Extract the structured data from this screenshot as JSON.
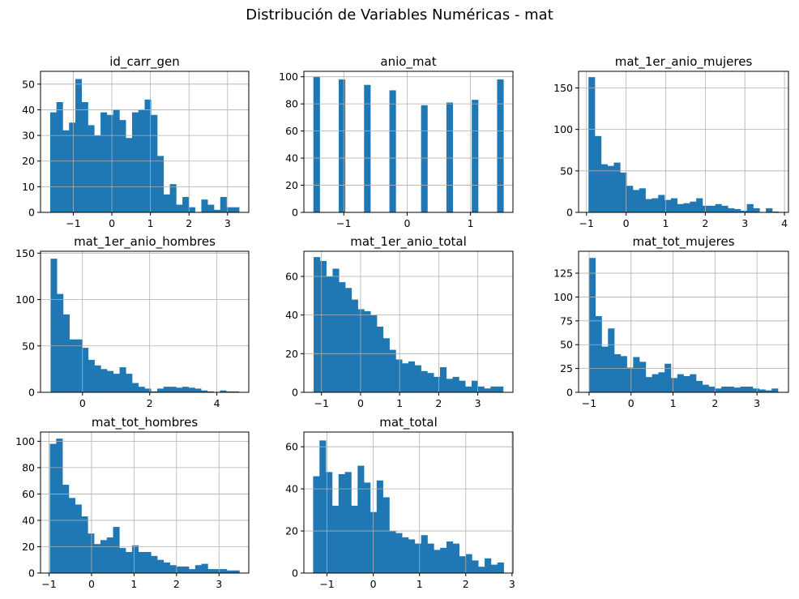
{
  "title": "Distribución de Variables Numéricas - mat",
  "chart_data": [
    {
      "type": "bar",
      "title": "id_carr_gen",
      "bin_edges": [
        -1.6,
        3.3
      ],
      "grid": true,
      "xlim": [
        -1.85,
        3.55
      ],
      "ylim": [
        0,
        55
      ],
      "xticks": [
        -1,
        0,
        1,
        2,
        3
      ],
      "xtick_labels": [
        "−1",
        "0",
        "1",
        "2",
        "3"
      ],
      "yticks": [
        0,
        10,
        20,
        30,
        40,
        50
      ],
      "ytick_labels": [
        "0",
        "10",
        "20",
        "30",
        "40",
        "50"
      ],
      "values": [
        39,
        43,
        32,
        35,
        52,
        43,
        34,
        30,
        39,
        38,
        40,
        36,
        29,
        39,
        40,
        44,
        38,
        22,
        7,
        11,
        3,
        6,
        2,
        0,
        5,
        3,
        1,
        6,
        2,
        2
      ]
    },
    {
      "type": "bar",
      "title": "anio_mat",
      "bin_edges": [
        -1.48,
        1.52
      ],
      "grid": true,
      "xlim": [
        -1.63,
        1.67
      ],
      "ylim": [
        0,
        104
      ],
      "xticks": [
        -1,
        0,
        1
      ],
      "xtick_labels": [
        "−1",
        "0",
        "1"
      ],
      "yticks": [
        0,
        20,
        40,
        60,
        80,
        100
      ],
      "ytick_labels": [
        "0",
        "20",
        "40",
        "60",
        "80",
        "100"
      ],
      "values": [
        100,
        0,
        0,
        0,
        98,
        0,
        0,
        0,
        94,
        0,
        0,
        0,
        90,
        0,
        0,
        0,
        0,
        79,
        0,
        0,
        0,
        81,
        0,
        0,
        0,
        83,
        0,
        0,
        0,
        98
      ]
    },
    {
      "type": "bar",
      "title": "mat_1er_anio_mujeres",
      "bin_edges": [
        -0.95,
        3.85
      ],
      "grid": true,
      "xlim": [
        -1.2,
        4.1
      ],
      "ylim": [
        0,
        170
      ],
      "xticks": [
        -1,
        0,
        1,
        2,
        3,
        4
      ],
      "xtick_labels": [
        "−1",
        "0",
        "1",
        "2",
        "3",
        "4"
      ],
      "yticks": [
        0,
        50,
        100,
        150
      ],
      "ytick_labels": [
        "0",
        "50",
        "100",
        "150"
      ],
      "values": [
        163,
        92,
        58,
        56,
        60,
        48,
        32,
        27,
        29,
        16,
        17,
        21,
        15,
        17,
        10,
        11,
        13,
        17,
        8,
        8,
        10,
        8,
        5,
        4,
        2,
        10,
        5,
        0,
        5,
        1
      ]
    },
    {
      "type": "bar",
      "title": "mat_1er_anio_hombres",
      "bin_edges": [
        -0.95,
        4.65
      ],
      "grid": true,
      "xlim": [
        -1.25,
        4.95
      ],
      "ylim": [
        0,
        152
      ],
      "xticks": [
        0,
        2,
        4
      ],
      "xtick_labels": [
        "0",
        "2",
        "4"
      ],
      "yticks": [
        0,
        50,
        100,
        150
      ],
      "ytick_labels": [
        "0",
        "50",
        "100",
        "150"
      ],
      "values": [
        144,
        106,
        84,
        57,
        57,
        48,
        35,
        29,
        25,
        23,
        20,
        27,
        20,
        10,
        6,
        4,
        1,
        4,
        6,
        6,
        5,
        6,
        5,
        4,
        2,
        1,
        0,
        2,
        1,
        1
      ]
    },
    {
      "type": "bar",
      "title": "mat_1er_anio_total",
      "bin_edges": [
        -1.2,
        3.65
      ],
      "grid": true,
      "xlim": [
        -1.45,
        3.9
      ],
      "ylim": [
        0,
        73
      ],
      "xticks": [
        -1,
        0,
        1,
        2,
        3
      ],
      "xtick_labels": [
        "−1",
        "0",
        "1",
        "2",
        "3"
      ],
      "yticks": [
        0,
        20,
        40,
        60
      ],
      "ytick_labels": [
        "0",
        "20",
        "40",
        "60"
      ],
      "values": [
        70,
        68,
        60,
        64,
        57,
        54,
        48,
        43,
        42,
        40,
        34,
        28,
        22,
        17,
        15,
        16,
        14,
        11,
        10,
        8,
        13,
        7,
        8,
        6,
        3,
        6,
        3,
        2,
        3,
        3
      ]
    },
    {
      "type": "bar",
      "title": "mat_tot_mujeres",
      "bin_edges": [
        -1.0,
        3.5
      ],
      "grid": true,
      "xlim": [
        -1.25,
        3.75
      ],
      "ylim": [
        0,
        148
      ],
      "xticks": [
        -1,
        0,
        1,
        2,
        3
      ],
      "xtick_labels": [
        "−1",
        "0",
        "1",
        "2",
        "3"
      ],
      "yticks": [
        0,
        25,
        50,
        75,
        100,
        125
      ],
      "ytick_labels": [
        "0",
        "25",
        "50",
        "75",
        "100",
        "125"
      ],
      "values": [
        141,
        80,
        48,
        67,
        40,
        38,
        26,
        37,
        32,
        16,
        19,
        21,
        30,
        15,
        19,
        17,
        19,
        12,
        8,
        6,
        4,
        6,
        6,
        5,
        6,
        6,
        4,
        3,
        2,
        4
      ]
    },
    {
      "type": "bar",
      "title": "mat_tot_hombres",
      "bin_edges": [
        -0.98,
        3.48
      ],
      "grid": true,
      "xlim": [
        -1.2,
        3.7
      ],
      "ylim": [
        0,
        107
      ],
      "xticks": [
        -1,
        0,
        1,
        2,
        3
      ],
      "xtick_labels": [
        "−1",
        "0",
        "1",
        "2",
        "3"
      ],
      "yticks": [
        0,
        20,
        40,
        60,
        80,
        100
      ],
      "ytick_labels": [
        "0",
        "20",
        "40",
        "60",
        "80",
        "100"
      ],
      "values": [
        98,
        102,
        67,
        57,
        52,
        43,
        30,
        22,
        25,
        27,
        35,
        19,
        16,
        21,
        16,
        16,
        13,
        10,
        8,
        6,
        5,
        5,
        3,
        6,
        7,
        3,
        3,
        3,
        2,
        2
      ]
    },
    {
      "type": "bar",
      "title": "mat_total",
      "bin_edges": [
        -1.3,
        2.82
      ],
      "grid": true,
      "xlim": [
        -1.5,
        3.02
      ],
      "ylim": [
        0,
        67
      ],
      "xticks": [
        -1,
        0,
        1,
        2,
        3
      ],
      "xtick_labels": [
        "−1",
        "0",
        "1",
        "2",
        "3"
      ],
      "yticks": [
        0,
        20,
        40,
        60
      ],
      "ytick_labels": [
        "0",
        "20",
        "40",
        "60"
      ],
      "values": [
        46,
        63,
        48,
        32,
        47,
        48,
        32,
        51,
        43,
        29,
        44,
        36,
        20,
        19,
        17,
        16,
        14,
        18,
        14,
        11,
        12,
        15,
        14,
        8,
        9,
        6,
        3,
        7,
        4,
        5
      ]
    }
  ]
}
